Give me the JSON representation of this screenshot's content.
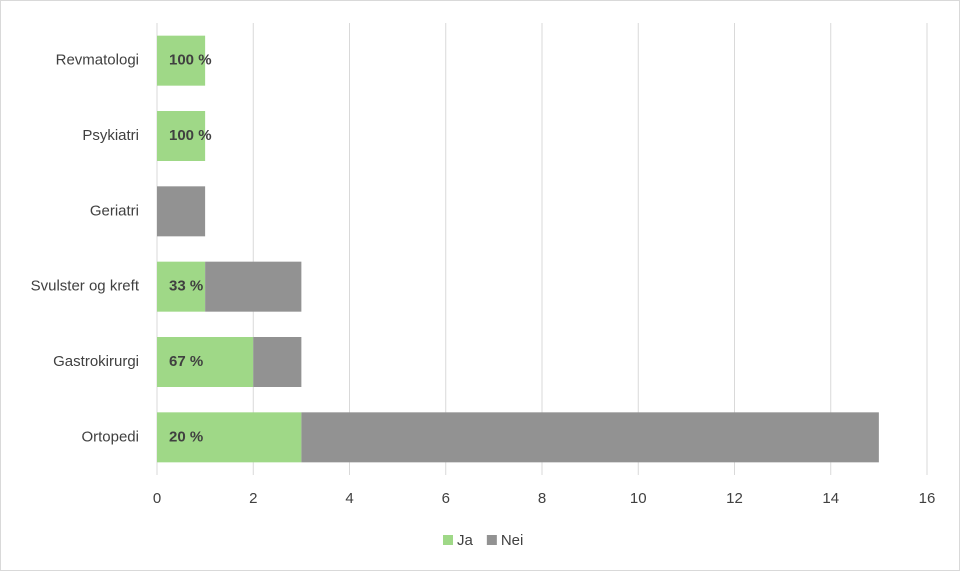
{
  "chart_data": {
    "type": "stacked-barh",
    "categories": [
      "Revmatologi",
      "Psykiatri",
      "Geriatri",
      "Svulster og kreft",
      "Gastrokirurgi",
      "Ortopedi"
    ],
    "series": [
      {
        "name": "Ja",
        "color": "#9fd887",
        "values": [
          1,
          1,
          0,
          1,
          2,
          3
        ]
      },
      {
        "name": "Nei",
        "color": "#929292",
        "values": [
          0,
          0,
          1,
          2,
          1,
          12
        ]
      }
    ],
    "annotations": [
      "100 %",
      "100 %",
      null,
      "33 %",
      "67 %",
      "20 %"
    ],
    "xlim": [
      0,
      16
    ],
    "xticks": [
      0,
      2,
      4,
      6,
      8,
      10,
      12,
      14,
      16
    ],
    "grid": true,
    "legend": "bottom"
  }
}
